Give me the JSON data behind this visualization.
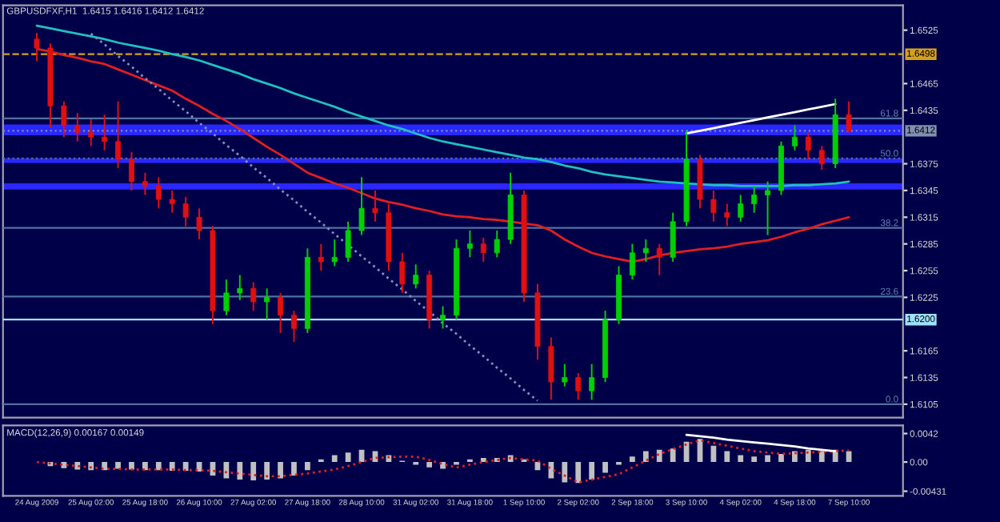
{
  "chart_data": [
    {
      "type": "candlestick",
      "title": "GBPUSDFXF,H1  1.6415 1.6416 1.6412 1.6412",
      "categories": [
        null,
        null,
        null,
        null,
        null,
        null,
        null,
        null,
        null,
        null,
        null,
        null,
        null,
        null,
        null,
        null,
        null,
        null,
        null,
        null,
        null,
        null,
        null,
        null,
        null,
        null,
        null,
        null,
        null,
        null,
        null,
        null,
        null,
        null,
        null,
        null,
        null,
        null,
        null,
        null,
        null,
        null,
        null,
        null,
        null,
        null,
        null,
        null,
        null,
        null,
        null,
        null,
        null,
        null,
        null,
        null,
        null,
        null,
        null,
        null,
        null
      ],
      "ohlc": [
        [
          1.6515,
          1.6522,
          1.649,
          1.6505
        ],
        [
          1.6505,
          1.651,
          1.6415,
          1.644
        ],
        [
          1.644,
          1.6445,
          1.6405,
          1.6418
        ],
        [
          1.6418,
          1.6432,
          1.64,
          1.641
        ],
        [
          1.641,
          1.6425,
          1.6395,
          1.6405
        ],
        [
          1.6405,
          1.643,
          1.639,
          1.64
        ],
        [
          1.64,
          1.6445,
          1.637,
          1.638
        ],
        [
          1.638,
          1.6388,
          1.6345,
          1.6355
        ],
        [
          1.6355,
          1.6365,
          1.634,
          1.635
        ],
        [
          1.635,
          1.636,
          1.6325,
          1.6335
        ],
        [
          1.6335,
          1.6345,
          1.632,
          1.633
        ],
        [
          1.633,
          1.6338,
          1.6305,
          1.6315
        ],
        [
          1.6315,
          1.6325,
          1.629,
          1.63
        ],
        [
          1.63,
          1.6305,
          1.6195,
          1.621
        ],
        [
          1.621,
          1.6245,
          1.6205,
          1.623
        ],
        [
          1.623,
          1.625,
          1.6222,
          1.6235
        ],
        [
          1.6235,
          1.6242,
          1.621,
          1.622
        ],
        [
          1.622,
          1.6235,
          1.62,
          1.6225
        ],
        [
          1.6225,
          1.623,
          1.6185,
          1.6205
        ],
        [
          1.6205,
          1.621,
          1.6175,
          1.619
        ],
        [
          1.619,
          1.628,
          1.6185,
          1.627
        ],
        [
          1.627,
          1.6285,
          1.6255,
          1.6265
        ],
        [
          1.6265,
          1.629,
          1.626,
          1.627
        ],
        [
          1.627,
          1.631,
          1.6265,
          1.63
        ],
        [
          1.63,
          1.636,
          1.6295,
          1.6325
        ],
        [
          1.6325,
          1.6345,
          1.631,
          1.632
        ],
        [
          1.632,
          1.633,
          1.6255,
          1.6265
        ],
        [
          1.6265,
          1.6275,
          1.623,
          1.624
        ],
        [
          1.624,
          1.6262,
          1.6235,
          1.625
        ],
        [
          1.625,
          1.6255,
          1.619,
          1.62
        ],
        [
          1.62,
          1.6215,
          1.619,
          1.6205
        ],
        [
          1.6205,
          1.629,
          1.62,
          1.628
        ],
        [
          1.628,
          1.63,
          1.627,
          1.6285
        ],
        [
          1.6285,
          1.6292,
          1.6265,
          1.6275
        ],
        [
          1.6275,
          1.63,
          1.627,
          1.629
        ],
        [
          1.629,
          1.6365,
          1.6285,
          1.634
        ],
        [
          1.634,
          1.6345,
          1.622,
          1.623
        ],
        [
          1.623,
          1.624,
          1.6155,
          1.617
        ],
        [
          1.617,
          1.618,
          1.611,
          1.613
        ],
        [
          1.613,
          1.615,
          1.6125,
          1.6135
        ],
        [
          1.6135,
          1.614,
          1.611,
          1.612
        ],
        [
          1.612,
          1.615,
          1.611,
          1.6135
        ],
        [
          1.6135,
          1.621,
          1.613,
          1.62
        ],
        [
          1.62,
          1.626,
          1.6195,
          1.625
        ],
        [
          1.625,
          1.6285,
          1.6245,
          1.6275
        ],
        [
          1.6275,
          1.629,
          1.6265,
          1.628
        ],
        [
          1.628,
          1.6285,
          1.625,
          1.627
        ],
        [
          1.627,
          1.632,
          1.6265,
          1.631
        ],
        [
          1.631,
          1.6412,
          1.6305,
          1.638
        ],
        [
          1.638,
          1.6385,
          1.6325,
          1.6335
        ],
        [
          1.6335,
          1.6345,
          1.631,
          1.632
        ],
        [
          1.632,
          1.633,
          1.6305,
          1.6315
        ],
        [
          1.6315,
          1.634,
          1.631,
          1.633
        ],
        [
          1.633,
          1.635,
          1.632,
          1.634
        ],
        [
          1.634,
          1.6355,
          1.6295,
          1.6345
        ],
        [
          1.6345,
          1.64,
          1.634,
          1.6395
        ],
        [
          1.6395,
          1.6418,
          1.639,
          1.6405
        ],
        [
          1.6405,
          1.641,
          1.638,
          1.639
        ],
        [
          1.639,
          1.6395,
          1.6368,
          1.6375
        ],
        [
          1.6375,
          1.6448,
          1.637,
          1.643
        ],
        [
          1.643,
          1.6445,
          1.641,
          1.6412
        ]
      ],
      "series": [
        {
          "type": "line",
          "color": "#20c0c0",
          "values": [
            1.653,
            1.6527,
            1.6524,
            1.6521,
            1.6518,
            1.6515,
            1.6511,
            1.6508,
            1.6505,
            1.6502,
            1.6498,
            1.6495,
            1.6491,
            1.6486,
            1.6481,
            1.6476,
            1.647,
            1.6465,
            1.646,
            1.6454,
            1.6449,
            1.6444,
            1.6439,
            1.6433,
            1.6428,
            1.6423,
            1.6418,
            1.6414,
            1.6409,
            1.6404,
            1.64,
            1.6397,
            1.6394,
            1.6391,
            1.6388,
            1.6385,
            1.6382,
            1.638,
            1.6377,
            1.6373,
            1.637,
            1.6366,
            1.6363,
            1.6361,
            1.6359,
            1.6357,
            1.6355,
            1.6354,
            1.6353,
            1.6352,
            1.6351,
            1.6351,
            1.635,
            1.635,
            1.635,
            1.635,
            1.6351,
            1.6351,
            1.6352,
            1.6353,
            1.6355
          ]
        },
        {
          "type": "line",
          "color": "#e02020",
          "values": [
            1.6504,
            1.6501,
            1.6497,
            1.6494,
            1.649,
            1.6487,
            1.6481,
            1.6475,
            1.6469,
            1.6463,
            1.6457,
            1.6448,
            1.644,
            1.6431,
            1.6423,
            1.6414,
            1.6404,
            1.6394,
            1.6385,
            1.6375,
            1.6365,
            1.6359,
            1.6353,
            1.6348,
            1.6342,
            1.6336,
            1.6332,
            1.6329,
            1.6325,
            1.6322,
            1.6318,
            1.6316,
            1.6315,
            1.6313,
            1.6312,
            1.631,
            1.6308,
            1.6306,
            1.63,
            1.629,
            1.6282,
            1.6275,
            1.6271,
            1.6268,
            1.6265,
            1.6268,
            1.6272,
            1.6275,
            1.6277,
            1.6279,
            1.628,
            1.6282,
            1.6285,
            1.6287,
            1.6289,
            1.6293,
            1.6298,
            1.6302,
            1.6307,
            1.6311,
            1.6315
          ]
        },
        {
          "type": "line",
          "color": "#ffffff",
          "values": [
            null,
            null,
            null,
            null,
            null,
            null,
            null,
            null,
            null,
            null,
            null,
            null,
            null,
            null,
            null,
            null,
            null,
            null,
            null,
            null,
            null,
            null,
            null,
            null,
            null,
            null,
            null,
            null,
            null,
            null,
            null,
            null,
            null,
            null,
            null,
            null,
            null,
            null,
            null,
            null,
            null,
            null,
            null,
            null,
            null,
            null,
            null,
            null,
            1.6409,
            1.6412,
            1.6415,
            1.6418,
            1.6421,
            1.6424,
            1.6427,
            1.643,
            1.6433,
            1.6436,
            1.6439,
            1.6442,
            null
          ]
        },
        {
          "type": "line",
          "color": "#8090c0",
          "line_style": "dotted",
          "values": [
            null,
            null,
            null,
            null,
            1.6521,
            1.6509,
            1.6496,
            1.6484,
            1.6471,
            1.6459,
            1.6446,
            1.6434,
            1.6421,
            1.6409,
            1.6396,
            1.6384,
            1.6371,
            1.6359,
            1.6346,
            1.6334,
            1.6321,
            1.6309,
            1.6296,
            1.6284,
            1.6271,
            1.6259,
            1.6246,
            1.6234,
            1.6221,
            1.6209,
            1.6196,
            1.6184,
            1.6171,
            1.6159,
            1.6146,
            1.6134,
            1.6121,
            1.6109,
            null,
            null,
            null,
            null,
            null,
            null,
            null,
            null,
            null,
            null,
            null,
            null,
            null,
            null,
            null,
            null,
            null,
            null,
            null,
            null,
            null,
            null,
            null
          ]
        }
      ],
      "ylim": [
        1.609,
        1.6553
      ],
      "yticks": [
        1.6525,
        1.6465,
        1.6435,
        1.6375,
        1.6345,
        1.6315,
        1.6285,
        1.6255,
        1.6225,
        1.6165,
        1.6135,
        1.6105
      ],
      "tick_labels": "y",
      "grid": false,
      "legend": false,
      "bands": [
        {
          "axis": "y",
          "from": 1.6407,
          "to": 1.6419,
          "color": "#2828ff"
        },
        {
          "axis": "y",
          "from": 1.6376,
          "to": 1.6381,
          "color": "#2828ff"
        },
        {
          "axis": "y",
          "from": 1.6346,
          "to": 1.6353,
          "color": "#2828ff"
        }
      ],
      "ref_lines": [
        {
          "axis": "y",
          "value": 1.6498,
          "label": "1.6498",
          "color": "#d4a020",
          "line_style": "dashed"
        },
        {
          "axis": "y",
          "value": 1.6412,
          "label": "1.6412",
          "color": "#8090b0",
          "line_style": "dotted"
        },
        {
          "axis": "y",
          "value": 1.62,
          "label": "1.6200",
          "color": "#a0e0ff",
          "line_style": "solid"
        },
        {
          "axis": "y",
          "value": 1.6426,
          "color": "#5070a0",
          "line_style": "solid"
        },
        {
          "axis": "y",
          "value": 1.6381,
          "color": "#5070a0",
          "line_style": "dotted"
        },
        {
          "axis": "y",
          "value": 1.6303,
          "color": "#5070a0",
          "line_style": "solid"
        },
        {
          "axis": "y",
          "value": 1.6226,
          "color": "#5070a0",
          "line_style": "solid"
        },
        {
          "axis": "y",
          "value": 1.6105,
          "color": "#5070a0",
          "line_style": "solid"
        }
      ],
      "annotations": [
        {
          "text": "61.8",
          "y": 1.6426
        },
        {
          "text": "50.0",
          "y": 1.6381
        },
        {
          "text": "38.2",
          "y": 1.6303
        },
        {
          "text": "23.6",
          "y": 1.6226
        },
        {
          "text": "0.0",
          "y": 1.6105
        }
      ]
    },
    {
      "type": "bar",
      "annotations": [
        "MACD(12,26,9) 0.00167 0.00149"
      ],
      "categories": [
        "24 Aug 2009",
        null,
        null,
        null,
        "25 Aug 02:00",
        null,
        null,
        null,
        "25 Aug 18:00",
        null,
        null,
        null,
        "26 Aug 10:00",
        null,
        null,
        null,
        "27 Aug 02:00",
        null,
        null,
        null,
        "27 Aug 18:00",
        null,
        null,
        null,
        "28 Aug 10:00",
        null,
        null,
        null,
        "31 Aug 02:00",
        null,
        null,
        null,
        "31 Aug 18:00",
        null,
        null,
        null,
        "1 Sep 10:00",
        null,
        null,
        null,
        "2 Sep 02:00",
        null,
        null,
        null,
        "2 Sep 18:00",
        null,
        null,
        null,
        "3 Sep 10:00",
        null,
        null,
        null,
        "4 Sep 02:00",
        null,
        null,
        null,
        "4 Sep 18:00",
        null,
        null,
        null,
        "7 Sep 10:00"
      ],
      "series": [
        {
          "type": "bar",
          "color": "#c0c0c0",
          "values": [
            0,
            -0.0006,
            -0.0009,
            -0.0011,
            -0.0012,
            -0.0012,
            -0.001,
            -0.0011,
            -0.0012,
            -0.0012,
            -0.0013,
            -0.0013,
            -0.0014,
            -0.002,
            -0.0024,
            -0.0026,
            -0.0027,
            -0.0026,
            -0.0024,
            -0.002,
            -0.0012,
            0.0004,
            0.001,
            0.0014,
            0.0018,
            0.0016,
            0.001,
            0.0002,
            -0.0004,
            -0.0008,
            -0.001,
            -0.0004,
            0.0004,
            0.0006,
            0.0006,
            0.001,
            0.0004,
            -0.0012,
            -0.0024,
            -0.003,
            -0.0031,
            -0.0026,
            -0.0016,
            -0.0004,
            0.0008,
            0.0016,
            0.0018,
            0.002,
            0.003,
            0.0034,
            0.0024,
            0.0016,
            0.001,
            0.0008,
            0.001,
            0.0012,
            0.0016,
            0.0018,
            0.0016,
            0.0018,
            0.0016
          ]
        },
        {
          "type": "line",
          "color": "#e02020",
          "line_style": "dotted",
          "values": [
            0,
            -0.0002,
            -0.0004,
            -0.0006,
            -0.0008,
            -0.001,
            -0.001,
            -0.0011,
            -0.0011,
            -0.0011,
            -0.0011,
            -0.0012,
            -0.0012,
            -0.0013,
            -0.0015,
            -0.0017,
            -0.0019,
            -0.0021,
            -0.0021,
            -0.0019,
            -0.0017,
            -0.0014,
            -0.0011,
            -0.0006,
            0.0,
            0.0006,
            0.0007,
            0.0008,
            0.0008,
            0.0003,
            -0.0003,
            -0.0008,
            -0.0004,
            0.0,
            0.0003,
            0.0006,
            0.0004,
            0.0002,
            -0.001,
            -0.002,
            -0.003,
            -0.0026,
            -0.0022,
            -0.0018,
            -0.0008,
            0.0002,
            0.0012,
            0.0019,
            0.0026,
            0.0032,
            0.0028,
            0.0024,
            0.002,
            0.0016,
            0.0014,
            0.0012,
            0.0013,
            0.0014,
            0.0015,
            0.0016,
            0.0017
          ]
        },
        {
          "type": "line",
          "color": "#ffffff",
          "values": [
            null,
            null,
            null,
            null,
            null,
            null,
            null,
            null,
            null,
            null,
            null,
            null,
            null,
            null,
            null,
            null,
            null,
            null,
            null,
            null,
            null,
            null,
            null,
            null,
            null,
            null,
            null,
            null,
            null,
            null,
            null,
            null,
            null,
            null,
            null,
            null,
            null,
            null,
            null,
            null,
            null,
            null,
            null,
            null,
            null,
            null,
            null,
            null,
            0.004,
            0.0038,
            0.0036,
            0.0033,
            0.0031,
            0.0029,
            0.0027,
            0.0025,
            0.0023,
            0.002,
            0.0018,
            0.0016,
            null
          ]
        }
      ],
      "ylim": [
        -0.005,
        0.0054
      ],
      "yticks": [
        {
          "value": 0.0042,
          "label": "0.0042"
        },
        {
          "value": 0,
          "label": "0.00"
        },
        {
          "value": -0.00431,
          "label": "-0.00431"
        }
      ],
      "grid": false,
      "legend": false
    }
  ]
}
